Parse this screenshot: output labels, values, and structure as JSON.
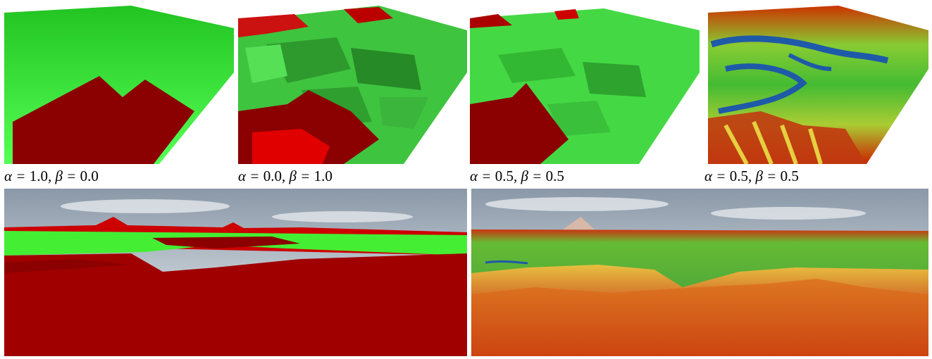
{
  "figure": {
    "top_row": [
      {
        "id": "p1",
        "alpha_symbol": "α",
        "beta_symbol": "β",
        "alpha": "1.0",
        "beta": "0.0"
      },
      {
        "id": "p2",
        "alpha_symbol": "α",
        "beta_symbol": "β",
        "alpha": "0.0",
        "beta": "1.0"
      },
      {
        "id": "p3",
        "alpha_symbol": "α",
        "beta_symbol": "β",
        "alpha": "0.5",
        "beta": "0.5"
      },
      {
        "id": "p4",
        "alpha_symbol": "α",
        "beta_symbol": "β",
        "alpha": "0.5",
        "beta": "0.5"
      }
    ],
    "bottom_row": [
      {
        "id": "p5"
      },
      {
        "id": "p6"
      }
    ],
    "colors": {
      "green_bright": "#33ee33",
      "green_dark": "#228b22",
      "red_dark": "#8b0000",
      "red_bright": "#dd0000",
      "water_blue": "#1e5aa8",
      "sky": "#aab7c4"
    }
  }
}
